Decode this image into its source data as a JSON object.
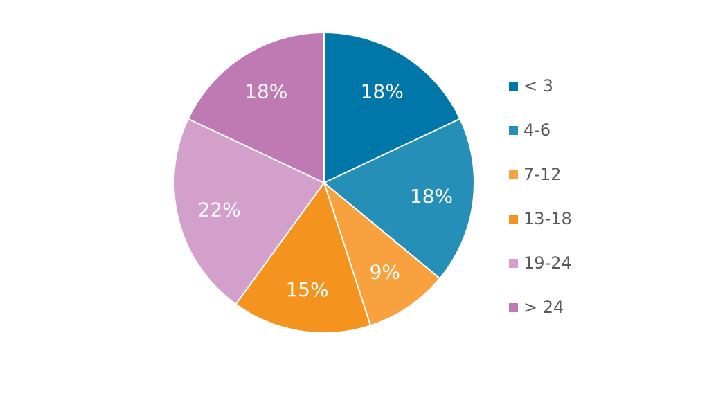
{
  "chart_data": {
    "type": "pie",
    "title": "",
    "categories": [
      "< 3",
      "4-6",
      "7-12",
      "13-18",
      "19-24",
      "> 24"
    ],
    "values": [
      18,
      18,
      9,
      15,
      22,
      18
    ],
    "data_labels": [
      "18%",
      "18%",
      "9%",
      "15%",
      "22%",
      "18%"
    ],
    "colors": [
      "#0077a8",
      "#268fb8",
      "#f7a23e",
      "#f5931f",
      "#d3a0cb",
      "#c07ab3"
    ],
    "label_color": "#ffffff",
    "legend_text_color": "#595959",
    "slice_border_color": "#ffffff",
    "legend_position": "right",
    "start_angle_deg": 0,
    "direction": "clockwise"
  }
}
